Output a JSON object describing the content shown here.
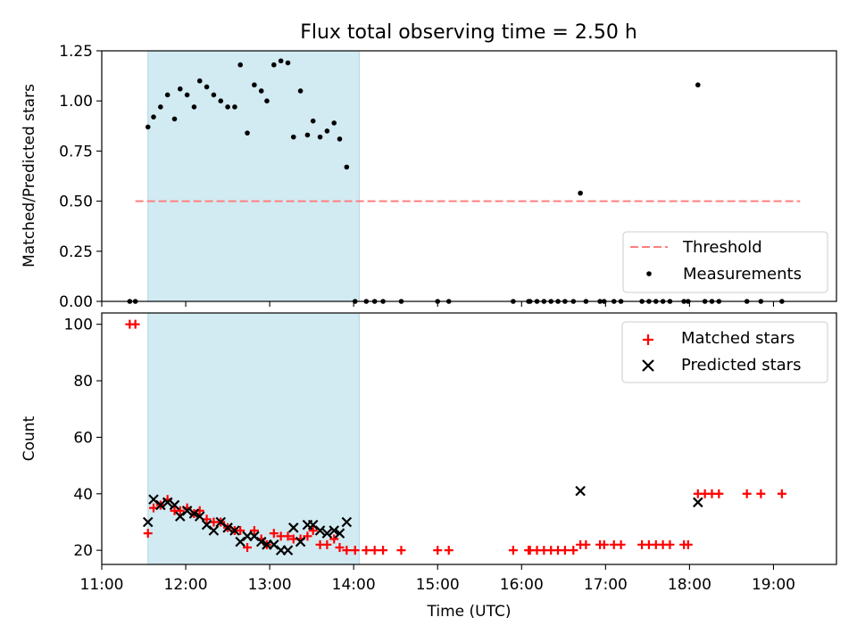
{
  "title": "Flux total observing time = 2.50 h",
  "colors": {
    "threshold": "#ff7f7f",
    "measurements": "#000000",
    "matched": "#ff0000",
    "predicted": "#000000",
    "span": "#add8e6"
  },
  "chart_data": [
    {
      "type": "scatter",
      "ylabel": "Matched/Predicted stars",
      "xlim": [
        "11:00",
        "19:45"
      ],
      "ylim": [
        0,
        1.25
      ],
      "yticks": [
        "0.00",
        "0.25",
        "0.50",
        "0.75",
        "1.00",
        "1.25"
      ],
      "shaded_span": [
        "11:33",
        "14:04"
      ],
      "grid": false,
      "legend": "lower-right",
      "legend_entries": [
        "Threshold",
        "Measurements"
      ],
      "threshold": {
        "name": "Threshold",
        "x": [
          "11:24",
          "19:19"
        ],
        "y": 0.5,
        "style": "dashed"
      },
      "series": [
        {
          "name": "Measurements",
          "marker": "dot",
          "points": [
            [
              "11:20",
              0.0
            ],
            [
              "11:24",
              0.0
            ],
            [
              "11:33",
              0.87
            ],
            [
              "11:37",
              0.92
            ],
            [
              "11:42",
              0.97
            ],
            [
              "11:47",
              1.03
            ],
            [
              "11:52",
              0.91
            ],
            [
              "11:56",
              1.06
            ],
            [
              "12:01",
              1.03
            ],
            [
              "12:06",
              0.97
            ],
            [
              "12:10",
              1.1
            ],
            [
              "12:15",
              1.07
            ],
            [
              "12:20",
              1.03
            ],
            [
              "12:25",
              1.0
            ],
            [
              "12:30",
              0.97
            ],
            [
              "12:35",
              0.97
            ],
            [
              "12:39",
              1.18
            ],
            [
              "12:44",
              0.84
            ],
            [
              "12:49",
              1.08
            ],
            [
              "12:54",
              1.05
            ],
            [
              "12:58",
              1.0
            ],
            [
              "13:03",
              1.18
            ],
            [
              "13:08",
              1.2
            ],
            [
              "13:13",
              1.19
            ],
            [
              "13:17",
              0.82
            ],
            [
              "13:22",
              1.05
            ],
            [
              "13:27",
              0.83
            ],
            [
              "13:31",
              0.9
            ],
            [
              "13:36",
              0.82
            ],
            [
              "13:41",
              0.85
            ],
            [
              "13:46",
              0.89
            ],
            [
              "13:50",
              0.81
            ],
            [
              "13:55",
              0.67
            ],
            [
              "14:01",
              0.0
            ],
            [
              "14:09",
              0.0
            ],
            [
              "14:15",
              0.0
            ],
            [
              "14:21",
              0.0
            ],
            [
              "14:34",
              0.0
            ],
            [
              "15:00",
              0.0
            ],
            [
              "15:08",
              0.0
            ],
            [
              "15:54",
              0.0
            ],
            [
              "16:05",
              0.0
            ],
            [
              "16:06",
              0.0
            ],
            [
              "16:11",
              0.0
            ],
            [
              "16:16",
              0.0
            ],
            [
              "16:21",
              0.0
            ],
            [
              "16:26",
              0.0
            ],
            [
              "16:31",
              0.0
            ],
            [
              "16:37",
              0.0
            ],
            [
              "16:42",
              0.54
            ],
            [
              "16:46",
              0.0
            ],
            [
              "16:56",
              0.0
            ],
            [
              "16:59",
              0.0
            ],
            [
              "17:06",
              0.0
            ],
            [
              "17:11",
              0.0
            ],
            [
              "17:26",
              0.0
            ],
            [
              "17:31",
              0.0
            ],
            [
              "17:36",
              0.0
            ],
            [
              "17:41",
              0.0
            ],
            [
              "17:46",
              0.0
            ],
            [
              "17:56",
              0.0
            ],
            [
              "17:59",
              0.0
            ],
            [
              "18:06",
              1.08
            ],
            [
              "18:11",
              0.0
            ],
            [
              "18:16",
              0.0
            ],
            [
              "18:21",
              0.0
            ],
            [
              "18:41",
              0.0
            ],
            [
              "18:51",
              0.0
            ],
            [
              "19:06",
              0.0
            ]
          ]
        }
      ]
    },
    {
      "type": "scatter",
      "ylabel": "Count",
      "xlabel": "Time (UTC)",
      "xlim": [
        "11:00",
        "19:45"
      ],
      "ylim": [
        15,
        104
      ],
      "yticks": [
        "20",
        "40",
        "60",
        "80",
        "100"
      ],
      "xticks": [
        "11:00",
        "12:00",
        "13:00",
        "14:00",
        "15:00",
        "16:00",
        "17:00",
        "18:00",
        "19:00"
      ],
      "shaded_span": [
        "11:33",
        "14:04"
      ],
      "grid": false,
      "legend": "upper-right",
      "legend_entries": [
        "Matched stars",
        "Predicted stars"
      ],
      "series": [
        {
          "name": "Matched stars",
          "marker": "plus",
          "points": [
            [
              "11:20",
              100
            ],
            [
              "11:24",
              100
            ],
            [
              "11:33",
              26
            ],
            [
              "11:37",
              35
            ],
            [
              "11:42",
              36
            ],
            [
              "11:47",
              38
            ],
            [
              "11:52",
              34
            ],
            [
              "11:56",
              34
            ],
            [
              "12:01",
              35
            ],
            [
              "12:06",
              33
            ],
            [
              "12:10",
              34
            ],
            [
              "12:15",
              31
            ],
            [
              "12:20",
              30
            ],
            [
              "12:25",
              30
            ],
            [
              "12:30",
              28
            ],
            [
              "12:35",
              27
            ],
            [
              "12:39",
              27
            ],
            [
              "12:44",
              21
            ],
            [
              "12:49",
              27
            ],
            [
              "12:54",
              24
            ],
            [
              "12:58",
              22
            ],
            [
              "13:03",
              26
            ],
            [
              "13:08",
              25
            ],
            [
              "13:13",
              25
            ],
            [
              "13:17",
              24
            ],
            [
              "13:22",
              24
            ],
            [
              "13:27",
              25
            ],
            [
              "13:31",
              27
            ],
            [
              "13:36",
              22
            ],
            [
              "13:41",
              22
            ],
            [
              "13:46",
              24
            ],
            [
              "13:50",
              21
            ],
            [
              "13:55",
              20
            ],
            [
              "14:01",
              20
            ],
            [
              "14:09",
              20
            ],
            [
              "14:15",
              20
            ],
            [
              "14:21",
              20
            ],
            [
              "14:34",
              20
            ],
            [
              "15:00",
              20
            ],
            [
              "15:08",
              20
            ],
            [
              "15:54",
              20
            ],
            [
              "16:05",
              20
            ],
            [
              "16:06",
              20
            ],
            [
              "16:11",
              20
            ],
            [
              "16:16",
              20
            ],
            [
              "16:21",
              20
            ],
            [
              "16:26",
              20
            ],
            [
              "16:31",
              20
            ],
            [
              "16:37",
              20
            ],
            [
              "16:42",
              22
            ],
            [
              "16:46",
              22
            ],
            [
              "16:56",
              22
            ],
            [
              "16:59",
              22
            ],
            [
              "17:06",
              22
            ],
            [
              "17:11",
              22
            ],
            [
              "17:26",
              22
            ],
            [
              "17:31",
              22
            ],
            [
              "17:36",
              22
            ],
            [
              "17:41",
              22
            ],
            [
              "17:46",
              22
            ],
            [
              "17:56",
              22
            ],
            [
              "17:59",
              22
            ],
            [
              "18:06",
              40
            ],
            [
              "18:11",
              40
            ],
            [
              "18:16",
              40
            ],
            [
              "18:21",
              40
            ],
            [
              "18:41",
              40
            ],
            [
              "18:51",
              40
            ],
            [
              "19:06",
              40
            ]
          ]
        },
        {
          "name": "Predicted stars",
          "marker": "x",
          "points": [
            [
              "11:33",
              30
            ],
            [
              "11:37",
              38
            ],
            [
              "11:42",
              36
            ],
            [
              "11:47",
              37
            ],
            [
              "11:52",
              36
            ],
            [
              "11:56",
              32
            ],
            [
              "12:01",
              34
            ],
            [
              "12:06",
              33
            ],
            [
              "12:10",
              32
            ],
            [
              "12:15",
              29
            ],
            [
              "12:20",
              27
            ],
            [
              "12:25",
              30
            ],
            [
              "12:30",
              28
            ],
            [
              "12:35",
              27
            ],
            [
              "12:39",
              23
            ],
            [
              "12:44",
              25
            ],
            [
              "12:49",
              25
            ],
            [
              "12:54",
              23
            ],
            [
              "12:58",
              22
            ],
            [
              "13:03",
              22
            ],
            [
              "13:08",
              20
            ],
            [
              "13:13",
              20
            ],
            [
              "13:17",
              28
            ],
            [
              "13:22",
              23
            ],
            [
              "13:27",
              29
            ],
            [
              "13:31",
              29
            ],
            [
              "13:36",
              27
            ],
            [
              "13:41",
              26
            ],
            [
              "13:46",
              27
            ],
            [
              "13:50",
              26
            ],
            [
              "13:55",
              30
            ],
            [
              "16:42",
              41
            ],
            [
              "18:06",
              37
            ]
          ]
        }
      ]
    }
  ]
}
